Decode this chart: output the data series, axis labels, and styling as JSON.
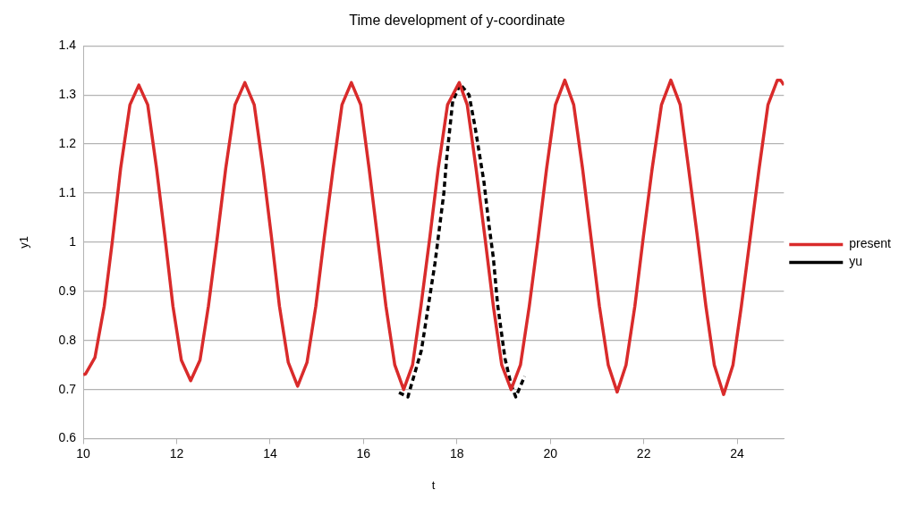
{
  "chart_data": {
    "type": "line",
    "title": "Time development of y-coordinate",
    "xlabel": "t",
    "ylabel": "y1",
    "xlim": [
      10,
      25
    ],
    "xticks": [
      10,
      12,
      14,
      16,
      18,
      20,
      22,
      24
    ],
    "ylim": [
      0.6,
      1.4
    ],
    "yticks": [
      0.6,
      0.7,
      0.8,
      0.9,
      1,
      1.1,
      1.2,
      1.3,
      1.4
    ],
    "grid": "y",
    "legend": "right",
    "marker": "none",
    "series": [
      {
        "name": "present",
        "color": "#d92b2b",
        "line_style": "solid",
        "x": [
          10.0,
          10.05,
          10.25,
          10.45,
          10.62,
          10.8,
          11.0,
          11.19,
          11.38,
          11.57,
          11.75,
          11.92,
          12.1,
          12.3,
          12.5,
          12.68,
          12.87,
          13.05,
          13.25,
          13.46,
          13.66,
          13.85,
          14.03,
          14.2,
          14.39,
          14.59,
          14.79,
          14.98,
          15.16,
          15.35,
          15.54,
          15.74,
          15.94,
          16.12,
          16.3,
          16.48,
          16.67,
          16.86,
          17.05,
          17.23,
          17.42,
          17.6,
          17.8,
          18.05,
          18.22,
          18.41,
          18.6,
          18.78,
          18.96,
          19.16,
          19.36,
          19.55,
          19.74,
          19.92,
          20.11,
          20.31,
          20.5,
          20.69,
          20.87,
          21.05,
          21.24,
          21.43,
          21.62,
          21.81,
          21.99,
          22.18,
          22.38,
          22.58,
          22.78,
          22.96,
          23.15,
          23.33,
          23.51,
          23.71,
          23.91,
          24.09,
          24.28,
          24.47,
          24.66,
          24.86,
          24.93,
          25.0
        ],
        "values": [
          0.73,
          0.732,
          0.765,
          0.87,
          1.0,
          1.15,
          1.28,
          1.32,
          1.28,
          1.15,
          1.01,
          0.87,
          0.76,
          0.718,
          0.76,
          0.87,
          1.01,
          1.15,
          1.28,
          1.325,
          1.28,
          1.15,
          1.01,
          0.87,
          0.755,
          0.707,
          0.755,
          0.87,
          1.01,
          1.15,
          1.28,
          1.325,
          1.28,
          1.15,
          1.01,
          0.87,
          0.75,
          0.7,
          0.75,
          0.87,
          1.01,
          1.15,
          1.28,
          1.325,
          1.28,
          1.15,
          1.01,
          0.87,
          0.75,
          0.7,
          0.75,
          0.87,
          1.01,
          1.15,
          1.28,
          1.33,
          1.28,
          1.15,
          1.01,
          0.87,
          0.75,
          0.695,
          0.75,
          0.87,
          1.01,
          1.15,
          1.28,
          1.33,
          1.28,
          1.15,
          1.01,
          0.87,
          0.75,
          0.69,
          0.75,
          0.87,
          1.01,
          1.15,
          1.28,
          1.33,
          1.33,
          1.32
        ]
      },
      {
        "name": "yu",
        "color": "#000000",
        "line_style": "dashed",
        "x": [
          16.76,
          16.95,
          17.24,
          17.53,
          17.72,
          17.78,
          17.91,
          18.07,
          18.26,
          18.39,
          18.58,
          18.68,
          18.78,
          18.87,
          19.03,
          19.16,
          19.26,
          19.45
        ],
        "values": [
          0.694,
          0.685,
          0.78,
          0.957,
          1.1,
          1.17,
          1.287,
          1.322,
          1.3,
          1.234,
          1.122,
          1.04,
          0.968,
          0.874,
          0.763,
          0.71,
          0.685,
          0.727
        ]
      }
    ]
  }
}
